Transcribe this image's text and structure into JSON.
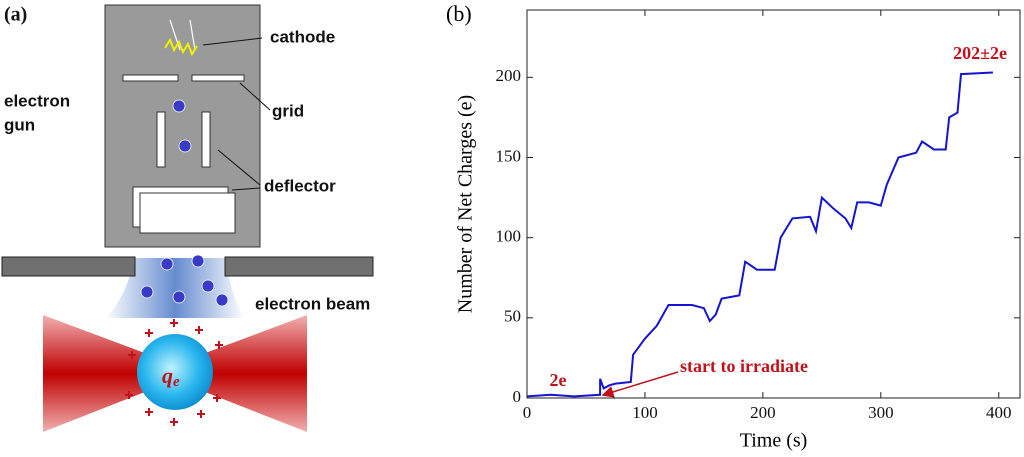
{
  "diagram": {
    "panel_label": "(a)",
    "cathode": "cathode",
    "grid": "grid",
    "electron_gun": [
      "electron",
      "gun"
    ],
    "deflector": "deflector",
    "electron_beam": "electron beam",
    "charge": {
      "symbol": "q",
      "subscript": "e"
    }
  },
  "chart_data": {
    "type": "line",
    "panel_label": "(b)",
    "xlabel": "Time (s)",
    "ylabel": "Number of Net Charges (e)",
    "color": "#1515d0",
    "x": [
      0,
      20,
      40,
      62,
      62,
      65,
      70,
      75,
      88,
      90,
      100,
      110,
      120,
      140,
      150,
      155,
      160,
      165,
      180,
      185,
      195,
      210,
      215,
      225,
      240,
      245,
      250,
      260,
      270,
      275,
      280,
      290,
      300,
      305,
      315,
      330,
      335,
      345,
      355,
      358,
      365,
      368,
      395
    ],
    "values": [
      1,
      2,
      1,
      2,
      12,
      6,
      8,
      9,
      10,
      27,
      37,
      45,
      58,
      58,
      56,
      48,
      52,
      62,
      64,
      85,
      80,
      80,
      100,
      112,
      113,
      104,
      125,
      118,
      112,
      106,
      122,
      122,
      120,
      133,
      150,
      153,
      160,
      155,
      155,
      175,
      178,
      202,
      203
    ],
    "xlim": [
      0,
      418
    ],
    "ylim": [
      0,
      242
    ],
    "xticks": [
      0,
      100,
      200,
      300,
      400
    ],
    "yticks": [
      0,
      50,
      100,
      150,
      200
    ],
    "annotations": {
      "final": "202±2e",
      "initial": "2e",
      "start": "start to irradiate"
    }
  }
}
